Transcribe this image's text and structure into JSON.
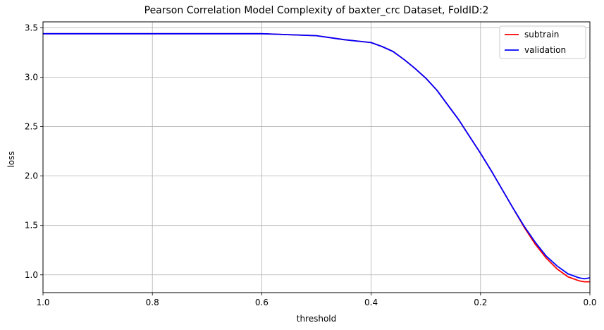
{
  "chart_data": {
    "type": "line",
    "title": "Pearson Correlation Model Complexity of baxter_crc Dataset, FoldID:2",
    "xlabel": "threshold",
    "ylabel": "loss",
    "xlim": [
      1.0,
      0.0
    ],
    "ylim": [
      0.82,
      3.56
    ],
    "xticks": [
      "1.0",
      "0.8",
      "0.6",
      "0.4",
      "0.2",
      "0.0"
    ],
    "xtick_values": [
      1.0,
      0.8,
      0.6,
      0.4,
      0.2,
      0.0
    ],
    "yticks": [
      "1.0",
      "1.5",
      "2.0",
      "2.5",
      "3.0",
      "3.5"
    ],
    "ytick_values": [
      1.0,
      1.5,
      2.0,
      2.5,
      3.0,
      3.5
    ],
    "grid": true,
    "legend_position": "top-right",
    "series": [
      {
        "name": "subtrain",
        "color": "#ff0000",
        "x": [
          1.0,
          0.9,
          0.8,
          0.7,
          0.6,
          0.5,
          0.45,
          0.4,
          0.38,
          0.36,
          0.34,
          0.32,
          0.3,
          0.28,
          0.26,
          0.24,
          0.22,
          0.2,
          0.18,
          0.16,
          0.14,
          0.12,
          0.1,
          0.08,
          0.06,
          0.04,
          0.02,
          0.01,
          0.0
        ],
        "y": [
          3.44,
          3.44,
          3.44,
          3.44,
          3.44,
          3.42,
          3.38,
          3.35,
          3.31,
          3.26,
          3.18,
          3.09,
          2.99,
          2.87,
          2.72,
          2.57,
          2.4,
          2.23,
          2.05,
          1.86,
          1.67,
          1.48,
          1.31,
          1.17,
          1.06,
          0.98,
          0.94,
          0.93,
          0.93
        ]
      },
      {
        "name": "validation",
        "color": "#0000ff",
        "x": [
          1.0,
          0.9,
          0.8,
          0.7,
          0.6,
          0.5,
          0.45,
          0.4,
          0.38,
          0.36,
          0.34,
          0.32,
          0.3,
          0.28,
          0.26,
          0.24,
          0.22,
          0.2,
          0.18,
          0.16,
          0.14,
          0.12,
          0.1,
          0.08,
          0.06,
          0.04,
          0.02,
          0.01,
          0.0
        ],
        "y": [
          3.44,
          3.44,
          3.44,
          3.44,
          3.44,
          3.42,
          3.38,
          3.35,
          3.31,
          3.26,
          3.18,
          3.09,
          2.99,
          2.87,
          2.72,
          2.57,
          2.4,
          2.23,
          2.05,
          1.86,
          1.67,
          1.49,
          1.33,
          1.19,
          1.09,
          1.01,
          0.97,
          0.96,
          0.97
        ]
      }
    ]
  }
}
